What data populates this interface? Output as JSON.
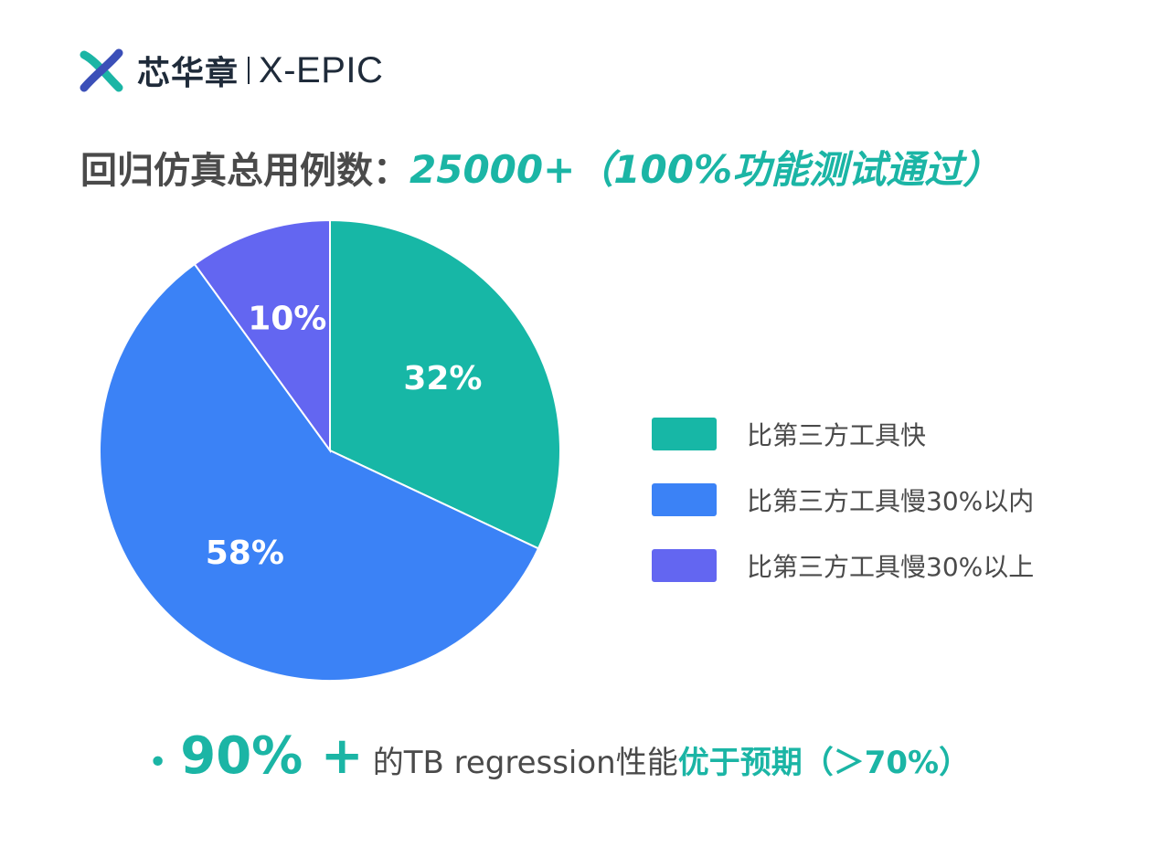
{
  "logo": {
    "cn": "芯华章",
    "en": "X-EPIC",
    "icon": "x-epic-logo-icon"
  },
  "headline": {
    "lead": "回归仿真总用例数：",
    "accent": "25000+（100%功能测试通过）"
  },
  "chart_data": {
    "type": "pie",
    "slices": [
      {
        "label": "比第三方工具快",
        "value": 32,
        "display": "32%",
        "color": "#17b7a6"
      },
      {
        "label": "比第三方工具慢30%以内",
        "value": 58,
        "display": "58%",
        "color": "#3b82f6"
      },
      {
        "label": "比第三方工具慢30%以上",
        "value": 10,
        "display": "10%",
        "color": "#6366f1"
      }
    ],
    "start_angle_deg": 0,
    "direction": "clockwise",
    "legend_position": "right"
  },
  "footer": {
    "bullet": "•",
    "big": "90% +",
    "plain": "的TB regression性能",
    "strong": "优于预期（＞70%）"
  }
}
